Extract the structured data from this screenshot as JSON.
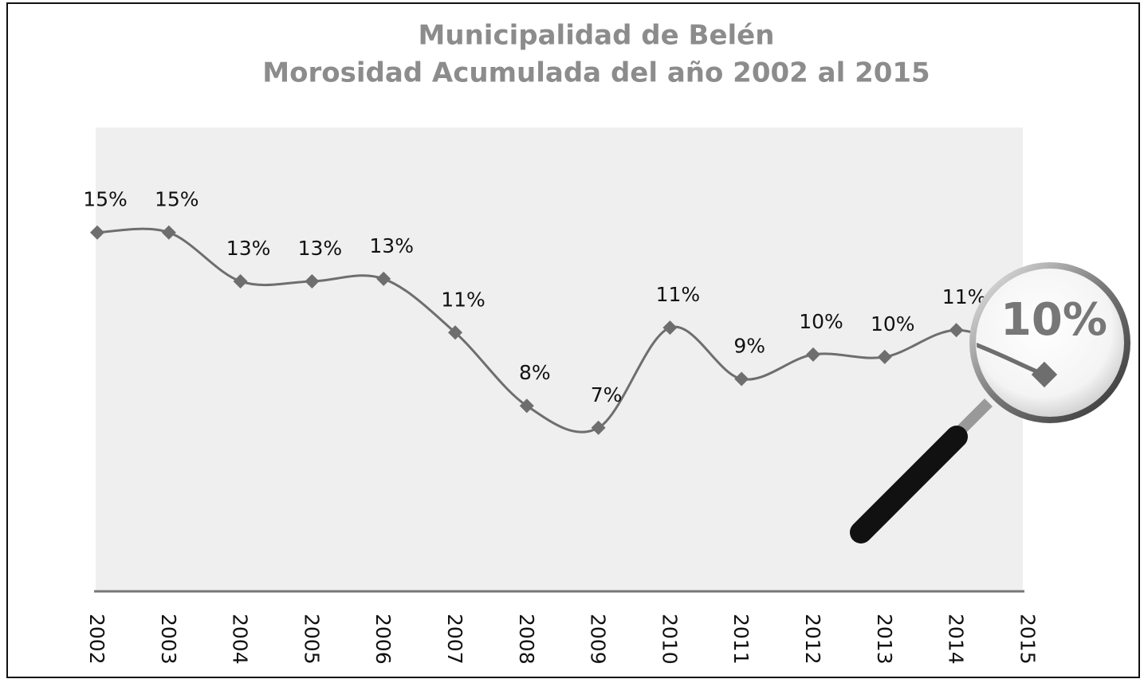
{
  "chart_data": {
    "type": "line",
    "title": "Municipalidad de Belén",
    "subtitle": "Morosidad Acumulada del año 2002 al 2015",
    "categories": [
      "2002",
      "2003",
      "2004",
      "2005",
      "2006",
      "2007",
      "2008",
      "2009",
      "2010",
      "2011",
      "2012",
      "2013",
      "2014",
      "2015"
    ],
    "values": [
      14.7,
      14.7,
      12.7,
      12.7,
      12.8,
      10.6,
      7.6,
      6.7,
      10.8,
      8.7,
      9.7,
      9.6,
      10.7,
      9.7
    ],
    "value_labels": [
      "15%",
      "15%",
      "13%",
      "13%",
      "13%",
      "11%",
      "8%",
      "7%",
      "11%",
      "9%",
      "10%",
      "10%",
      "11%",
      "10%"
    ],
    "color": "#6e6e6e",
    "ylim": [
      0,
      19
    ],
    "smooth": true
  }
}
